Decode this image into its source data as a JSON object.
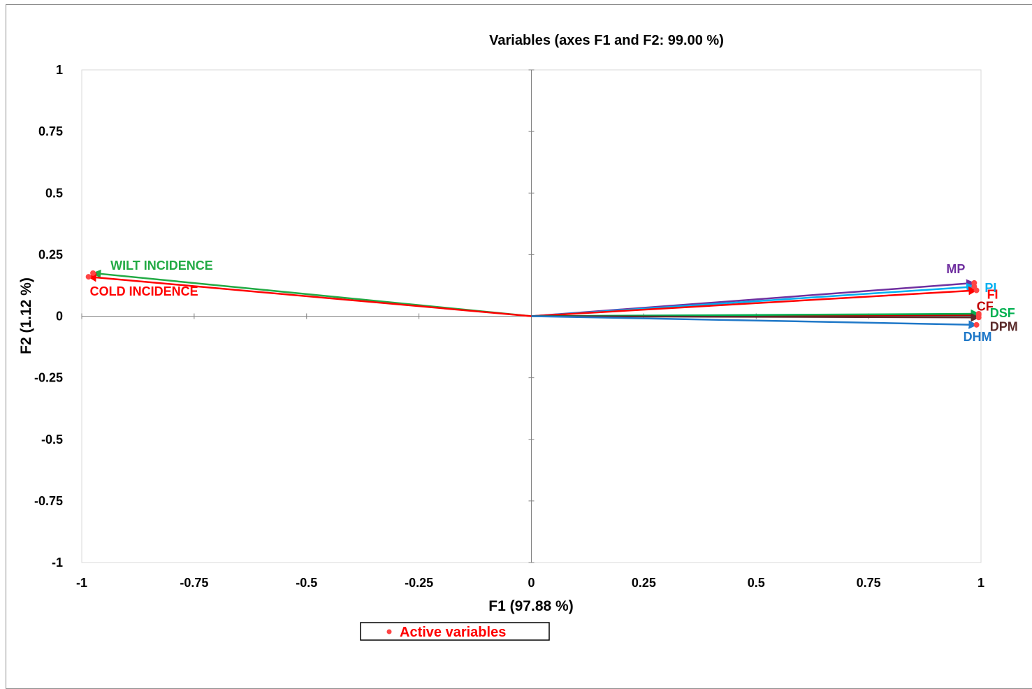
{
  "chart_data": {
    "type": "scatter",
    "title": "Variables (axes F1 and F2: 99.00 %)",
    "xlabel": "F1 (97.88 %)",
    "ylabel": "F2 (1.12 %)",
    "xlim": [
      -1,
      1
    ],
    "ylim": [
      -1,
      1
    ],
    "x_ticks": [
      "-1",
      "-0.75",
      "-0.5",
      "-0.25",
      "0",
      "0.25",
      "0.5",
      "0.75",
      "1"
    ],
    "y_ticks": [
      "1",
      "0.75",
      "0.5",
      "0.25",
      "0",
      "-0.25",
      "-0.5",
      "-0.75",
      "-1"
    ],
    "grid": false,
    "legend": {
      "placement": "bottom",
      "entries": [
        "Active variables"
      ],
      "marker_color": "#ff4444",
      "text_color": "#ff0000"
    },
    "point_color": "#ff4444",
    "variables": [
      {
        "label": "WILT INCIDENCE",
        "x": -0.975,
        "y": 0.175,
        "color": "#22aa44"
      },
      {
        "label": "COLD INCIDENCE",
        "x": -0.985,
        "y": 0.16,
        "color": "#ff0000"
      },
      {
        "label": "MP",
        "x": 0.985,
        "y": 0.135,
        "color": "#7030a0"
      },
      {
        "label": "PI",
        "x": 0.985,
        "y": 0.12,
        "color": "#00b0f0"
      },
      {
        "label": "FI",
        "x": 0.99,
        "y": 0.105,
        "color": "#ff0000"
      },
      {
        "label": "CF",
        "x": 0.995,
        "y": 0.005,
        "color": "#c00000"
      },
      {
        "label": "DSF",
        "x": 0.995,
        "y": 0.01,
        "color": "#00b050"
      },
      {
        "label": "DPM",
        "x": 0.995,
        "y": -0.005,
        "color": "#5a2a2a"
      },
      {
        "label": "DHM",
        "x": 0.99,
        "y": -0.035,
        "color": "#1f78c8"
      }
    ]
  }
}
